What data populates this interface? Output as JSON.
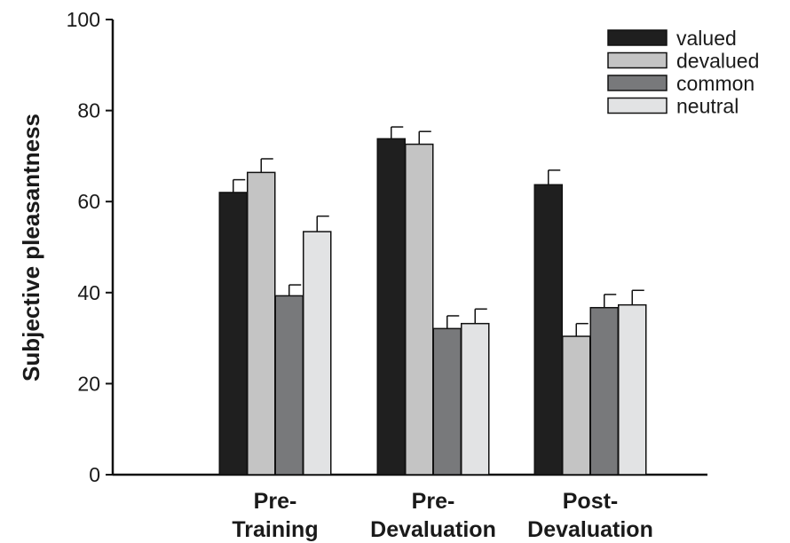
{
  "chart_data": {
    "type": "bar",
    "title": "",
    "xlabel": "",
    "ylabel": "Subjective pleasantness",
    "ylim": [
      0,
      100
    ],
    "yticks": [
      0,
      20,
      40,
      60,
      80,
      100
    ],
    "categories": [
      [
        "Pre-",
        "Training"
      ],
      [
        "Pre-",
        "Devaluation"
      ],
      [
        "Post-",
        "Devaluation"
      ]
    ],
    "series": [
      {
        "name": "valued",
        "color": "#1f1f1f",
        "values": [
          62.0,
          73.8,
          63.7
        ],
        "errors": [
          2.8,
          2.6,
          3.2
        ]
      },
      {
        "name": "devalued",
        "color": "#c4c4c4",
        "values": [
          66.4,
          72.6,
          30.4
        ],
        "errors": [
          3.0,
          2.8,
          2.8
        ]
      },
      {
        "name": "common",
        "color": "#78797b",
        "values": [
          39.3,
          32.1,
          36.7
        ],
        "errors": [
          2.4,
          2.8,
          2.9
        ]
      },
      {
        "name": "neutral",
        "color": "#e2e3e4",
        "values": [
          53.4,
          33.2,
          37.3
        ],
        "errors": [
          3.4,
          3.2,
          3.2
        ]
      }
    ],
    "error_bars": true,
    "grid": false,
    "legend_position": "top-right"
  }
}
